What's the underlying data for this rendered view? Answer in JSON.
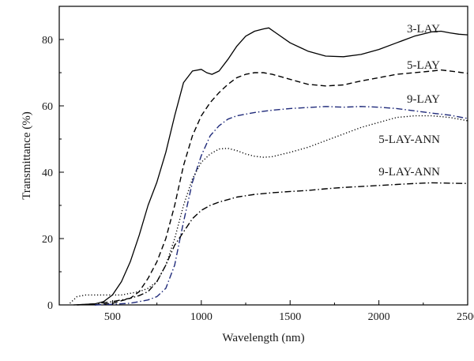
{
  "chart_data": {
    "type": "line",
    "title": "",
    "xlabel": "Wavelength (nm)",
    "ylabel": "Transmittance (%)",
    "xlim": [
      200,
      2500
    ],
    "ylim": [
      0,
      90
    ],
    "x_ticks": [
      500,
      1000,
      1500,
      2000,
      2500
    ],
    "y_ticks": [
      0,
      20,
      40,
      60,
      80
    ],
    "grid": false,
    "legend": "labels placed next to curves at right",
    "series": [
      {
        "name": "3-LAY",
        "color": "#000000",
        "dash": "solid",
        "x": [
          280,
          400,
          450,
          500,
          550,
          600,
          650,
          700,
          750,
          800,
          850,
          900,
          950,
          1000,
          1030,
          1060,
          1100,
          1150,
          1200,
          1250,
          1300,
          1350,
          1380,
          1420,
          1500,
          1600,
          1700,
          1800,
          1900,
          2000,
          2100,
          2200,
          2300,
          2350,
          2400,
          2450,
          2500
        ],
        "y": [
          0,
          0.3,
          1,
          3,
          7,
          13,
          21,
          30,
          37,
          46,
          57,
          67,
          70.5,
          71,
          70,
          69.5,
          70.5,
          74,
          78,
          81,
          82.5,
          83.2,
          83.5,
          82,
          79,
          76.5,
          75,
          74.8,
          75.5,
          77,
          79,
          81,
          82.3,
          82.5,
          82,
          81.6,
          81.4
        ]
      },
      {
        "name": "5-LAY",
        "color": "#000000",
        "dash": "dashed",
        "x": [
          400,
          500,
          600,
          650,
          700,
          750,
          800,
          850,
          900,
          950,
          1000,
          1050,
          1100,
          1150,
          1200,
          1250,
          1300,
          1350,
          1400,
          1500,
          1600,
          1700,
          1800,
          1900,
          2000,
          2100,
          2200,
          2300,
          2350,
          2400,
          2500
        ],
        "y": [
          0,
          0.5,
          2,
          4,
          8,
          13,
          20,
          30,
          42,
          51,
          57,
          61,
          64,
          66.5,
          68.5,
          69.5,
          70,
          70,
          69.5,
          68,
          66.5,
          66,
          66.3,
          67.5,
          68.5,
          69.5,
          70,
          70.5,
          70.8,
          70.5,
          69.8
        ]
      },
      {
        "name": "9-LAY",
        "color": "#1f2a7a",
        "dash": "dashdot",
        "x": [
          400,
          500,
          600,
          700,
          750,
          800,
          850,
          880,
          900,
          950,
          1000,
          1050,
          1100,
          1150,
          1200,
          1300,
          1400,
          1500,
          1600,
          1700,
          1800,
          1900,
          2000,
          2100,
          2200,
          2300,
          2400,
          2500
        ],
        "y": [
          0,
          0.2,
          0.5,
          1.5,
          2.5,
          5,
          12,
          20,
          25,
          37,
          45,
          51,
          54,
          56,
          57,
          58,
          58.7,
          59.2,
          59.5,
          59.8,
          59.6,
          59.8,
          59.6,
          59.2,
          58.5,
          57.8,
          57.2,
          56.2
        ]
      },
      {
        "name": "5-LAY-ANN",
        "color": "#000000",
        "dash": "dotted",
        "x": [
          260,
          300,
          350,
          400,
          450,
          500,
          550,
          600,
          650,
          700,
          750,
          800,
          850,
          900,
          950,
          1000,
          1050,
          1100,
          1150,
          1200,
          1250,
          1300,
          1350,
          1400,
          1500,
          1600,
          1700,
          1800,
          1900,
          2000,
          2100,
          2200,
          2300,
          2400,
          2500
        ],
        "y": [
          0.5,
          2.5,
          3,
          3,
          3,
          3,
          3,
          3.5,
          4,
          5,
          7,
          12,
          20,
          30,
          38,
          43,
          45.5,
          47,
          47.2,
          46.5,
          45.5,
          44.8,
          44.5,
          44.7,
          46,
          47.5,
          49.5,
          51.5,
          53.5,
          55,
          56.5,
          57,
          57,
          56.5,
          55.5
        ]
      },
      {
        "name": "9-LAY-ANN",
        "color": "#000000",
        "dash": "dashdot",
        "x": [
          300,
          400,
          500,
          550,
          600,
          650,
          700,
          750,
          800,
          850,
          900,
          950,
          1000,
          1050,
          1100,
          1200,
          1300,
          1400,
          1500,
          1600,
          1700,
          1800,
          1900,
          2000,
          2100,
          2200,
          2300,
          2400,
          2500
        ],
        "y": [
          0,
          0.3,
          1,
          1.5,
          2,
          2.8,
          4,
          7,
          12,
          18,
          22,
          26,
          28.5,
          30,
          31,
          32.5,
          33.3,
          33.8,
          34.2,
          34.5,
          35,
          35.4,
          35.7,
          36,
          36.3,
          36.6,
          36.8,
          36.7,
          36.6
        ]
      }
    ]
  }
}
